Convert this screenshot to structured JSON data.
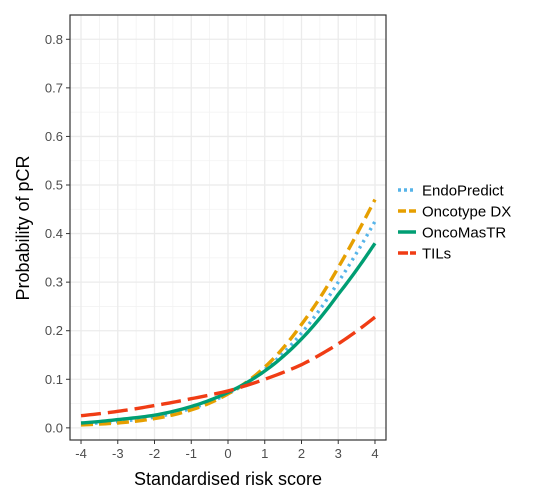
{
  "chart_data": {
    "type": "line",
    "xlabel": "Standardised risk score",
    "ylabel": "Probability of pCR",
    "xlim": [
      -4.3,
      4.3
    ],
    "ylim": [
      -0.025,
      0.85
    ],
    "xticks": [
      -4,
      -3,
      -2,
      -1,
      0,
      1,
      2,
      3,
      4
    ],
    "yticks": [
      0.0,
      0.1,
      0.2,
      0.3,
      0.4,
      0.5,
      0.6,
      0.7,
      0.8
    ],
    "xtick_labels": [
      "-4",
      "-3",
      "-2",
      "-1",
      "0",
      "1",
      "2",
      "3",
      "4"
    ],
    "ytick_labels": [
      "0.0",
      "0.1",
      "0.2",
      "0.3",
      "0.4",
      "0.5",
      "0.6",
      "0.7",
      "0.8"
    ],
    "grid": true,
    "legend_position": "right",
    "x": [
      -4,
      -3,
      -2,
      -1,
      0,
      1,
      2,
      3,
      4
    ],
    "series": [
      {
        "name": "EndoPredict",
        "color": "#56B4E9",
        "dash": "dotted",
        "values": [
          0.008,
          0.013,
          0.022,
          0.04,
          0.07,
          0.12,
          0.195,
          0.3,
          0.425
        ]
      },
      {
        "name": "Oncotype DX",
        "color": "#E69F00",
        "dash": "dashed",
        "values": [
          0.006,
          0.01,
          0.019,
          0.037,
          0.07,
          0.125,
          0.213,
          0.33,
          0.47
        ]
      },
      {
        "name": "OncoMasTR",
        "color": "#009E73",
        "dash": "solid",
        "values": [
          0.01,
          0.017,
          0.026,
          0.044,
          0.073,
          0.117,
          0.183,
          0.275,
          0.38
        ]
      },
      {
        "name": "TILs",
        "color": "#F03C14",
        "dash": "longdash",
        "values": [
          0.025,
          0.034,
          0.046,
          0.06,
          0.076,
          0.1,
          0.13,
          0.173,
          0.228
        ]
      }
    ]
  }
}
